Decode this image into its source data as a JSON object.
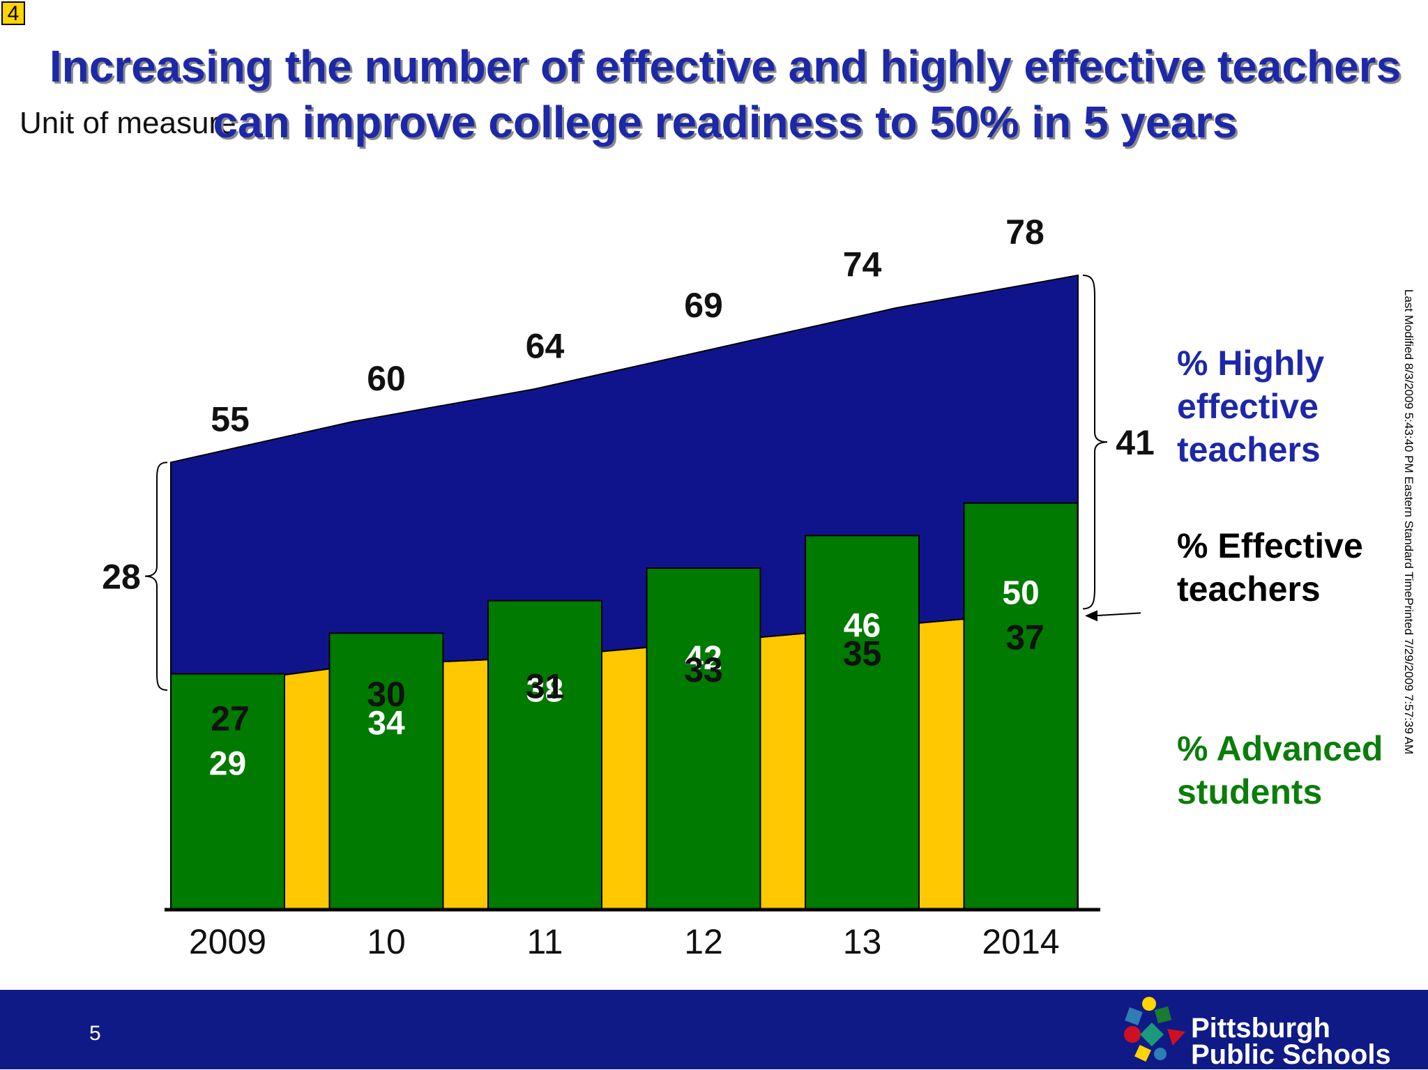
{
  "slide": {
    "number_box": "4",
    "unit_label": "Unit of measure",
    "page_number": "5",
    "timestamp_modified": "Last Modified 8/3/2009 5:43:40 PM Eastern Standard Time",
    "timestamp_printed": "Printed 7/29/2009 7:57:39 AM",
    "brand": {
      "line1": "Pittsburgh",
      "line2": "Public Schools"
    }
  },
  "chart_data": {
    "type": "bar",
    "title": "Increasing the number of effective and highly effective teachers can improve college readiness to 50% in 5 years",
    "categories": [
      "2009",
      "10",
      "11",
      "12",
      "13",
      "2014"
    ],
    "series": [
      {
        "name": "% Advanced students",
        "kind": "bar",
        "values": [
          29,
          34,
          38,
          42,
          46,
          50
        ]
      },
      {
        "name": "% Effective teachers",
        "kind": "area",
        "values": [
          27,
          30,
          31,
          33,
          35,
          37
        ]
      },
      {
        "name": "% Highly effective teachers",
        "kind": "area",
        "stacked_total": [
          55,
          60,
          64,
          69,
          74,
          78
        ]
      }
    ],
    "annotations": {
      "highly_effective_2009": "28",
      "highly_effective_2014": "41"
    },
    "legend_position": "right",
    "legend": [
      {
        "lines": [
          "% Highly",
          "effective",
          "teachers"
        ],
        "color": "#1c28a8"
      },
      {
        "lines": [
          "% Effective",
          "teachers"
        ],
        "color": "#000000"
      },
      {
        "lines": [
          "% Advanced",
          "students"
        ],
        "color": "#0a7d0a"
      }
    ],
    "colors": {
      "highly_effective": "#10148c",
      "effective": "#ffc800",
      "advanced": "#007a00"
    }
  }
}
